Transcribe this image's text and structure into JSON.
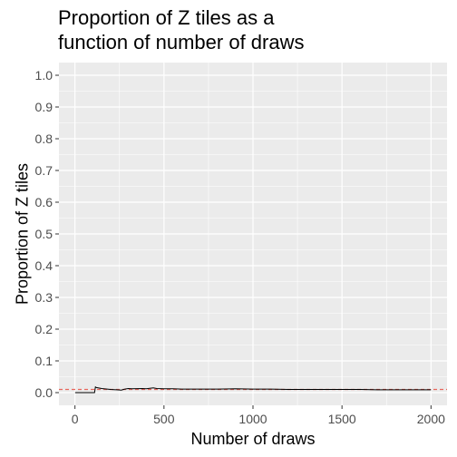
{
  "chart_data": {
    "type": "line",
    "title_lines": [
      "Proportion of Z tiles as a",
      "function of number of draws"
    ],
    "xlabel": "Number of draws",
    "ylabel": "Proportion of Z tiles",
    "xlim": [
      -90,
      2090
    ],
    "ylim": [
      -0.04,
      1.04
    ],
    "x_ticks": [
      0,
      500,
      1000,
      1500,
      2000
    ],
    "x_tick_labels": [
      "0",
      "500",
      "1000",
      "1500",
      "2000"
    ],
    "y_ticks": [
      0.0,
      0.1,
      0.2,
      0.3,
      0.4,
      0.5,
      0.6,
      0.7,
      0.8,
      0.9,
      1.0
    ],
    "y_tick_labels": [
      "0.0",
      "0.1",
      "0.2",
      "0.3",
      "0.4",
      "0.5",
      "0.6",
      "0.7",
      "0.8",
      "0.9",
      "1.0"
    ],
    "grid": true,
    "reference_line": {
      "y": 0.01,
      "style": "dashed",
      "color": "#e8665c"
    },
    "series": [
      {
        "color": "#000000",
        "x": [
          1,
          60,
          110,
          115,
          120,
          150,
          200,
          260,
          280,
          300,
          320,
          380,
          400,
          440,
          460,
          500,
          550,
          600,
          700,
          800,
          900,
          1000,
          1100,
          1200,
          1300,
          1400,
          1500,
          1600,
          1700,
          1800,
          1900,
          2000
        ],
        "y": [
          0.0,
          0.0,
          0.0,
          0.018,
          0.016,
          0.013,
          0.01,
          0.008,
          0.011,
          0.013,
          0.012,
          0.013,
          0.012,
          0.015,
          0.013,
          0.012,
          0.012,
          0.011,
          0.011,
          0.011,
          0.012,
          0.011,
          0.011,
          0.01,
          0.01,
          0.01,
          0.01,
          0.01,
          0.009,
          0.009,
          0.009,
          0.009
        ]
      }
    ],
    "colors": {
      "panel_background": "#ebebeb",
      "grid_major": "#ffffff",
      "page_background": "#ffffff"
    }
  }
}
